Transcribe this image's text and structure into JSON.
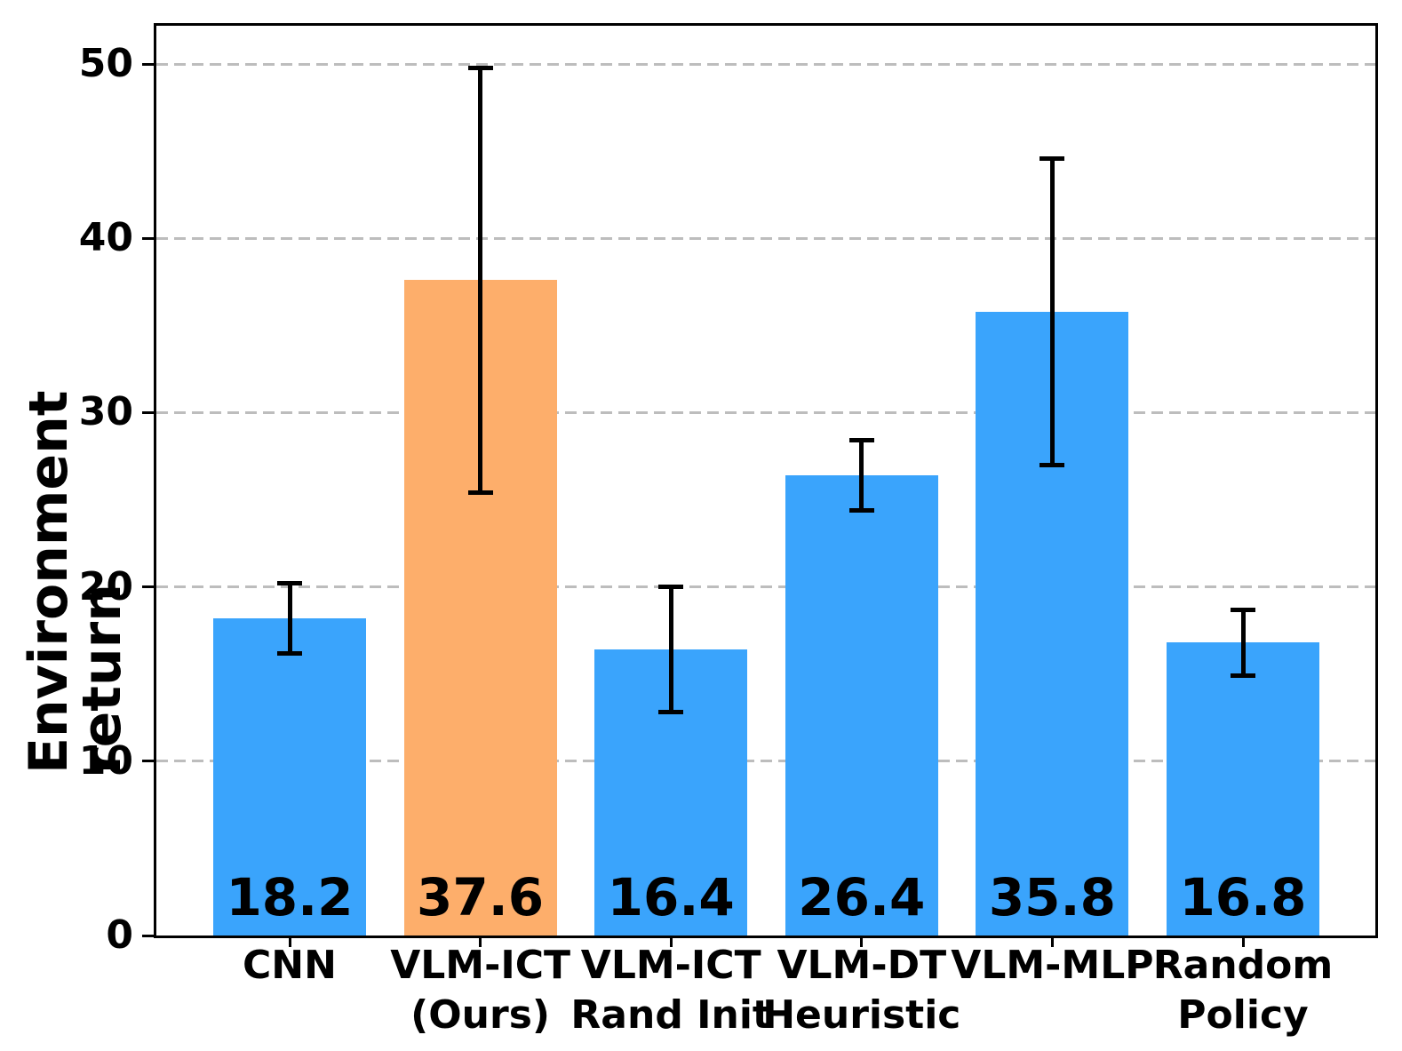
{
  "chart_data": {
    "type": "bar",
    "title": "",
    "ylabel": "Environment return",
    "xlabel": "",
    "categories": [
      "CNN",
      "VLM-ICT\n(Ours)",
      "VLM-ICT\nRand Init",
      "VLM-DT\nHeuristic",
      "VLM-MLP",
      "Random\nPolicy"
    ],
    "values": [
      18.2,
      37.6,
      16.4,
      26.4,
      35.8,
      16.8
    ],
    "errors": [
      2.0,
      12.2,
      3.6,
      2.0,
      8.8,
      1.9
    ],
    "value_labels": [
      "18.2",
      "37.6",
      "16.4",
      "26.4",
      "35.8",
      "16.8"
    ],
    "bar_colors": [
      "#3AA4FC",
      "#FDAE6B",
      "#3AA4FC",
      "#3AA4FC",
      "#3AA4FC",
      "#3AA4FC"
    ],
    "highlight_index": 1,
    "yticks": [
      0,
      10,
      20,
      30,
      40,
      50
    ],
    "ylim": [
      0,
      52.2
    ],
    "grid": {
      "axis": "y",
      "style": "dashed",
      "color": "#BDBDBD"
    },
    "legend": "none",
    "error_bar_color": "#000000"
  }
}
